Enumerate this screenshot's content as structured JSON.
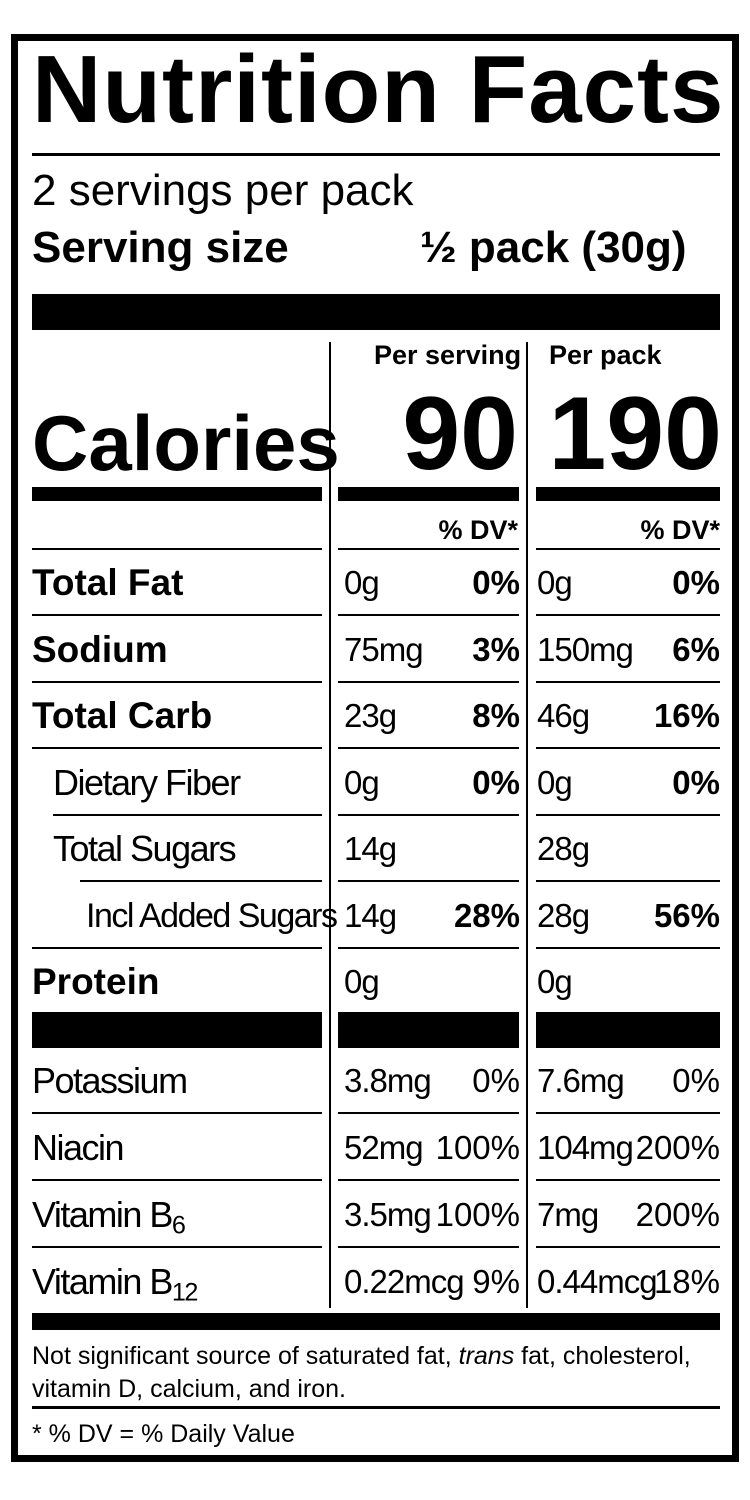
{
  "title": "Nutrition Facts",
  "servings_per_pack": "2 servings per pack",
  "serving_size_label": "Serving size",
  "serving_size_value": "½ pack (30g)",
  "columns": {
    "per_serving": "Per serving",
    "per_pack": "Per pack"
  },
  "calories": {
    "label": "Calories",
    "per_serving": "90",
    "per_pack": "190"
  },
  "dv_header": "% DV*",
  "nutrients": [
    {
      "name": "Total Fat",
      "serving_amount": "0g",
      "serving_dv": "0%",
      "pack_amount": "0g",
      "pack_dv": "0%"
    },
    {
      "name": "Sodium",
      "serving_amount": "75mg",
      "serving_dv": "3%",
      "pack_amount": "150mg",
      "pack_dv": "6%"
    },
    {
      "name": "Total Carb",
      "serving_amount": "23g",
      "serving_dv": "8%",
      "pack_amount": "46g",
      "pack_dv": "16%"
    },
    {
      "name": "Dietary Fiber",
      "serving_amount": "0g",
      "serving_dv": "0%",
      "pack_amount": "0g",
      "pack_dv": "0%"
    },
    {
      "name": "Total Sugars",
      "serving_amount": "14g",
      "serving_dv": "",
      "pack_amount": "28g",
      "pack_dv": ""
    },
    {
      "name": "Incl Added Sugars",
      "serving_amount": "14g",
      "serving_dv": "28%",
      "pack_amount": "28g",
      "pack_dv": "56%"
    },
    {
      "name": "Protein",
      "serving_amount": "0g",
      "serving_dv": "",
      "pack_amount": "0g",
      "pack_dv": ""
    }
  ],
  "vitamins": [
    {
      "name": "Potassium",
      "serving_amount": "3.8mg",
      "serving_dv": "0%",
      "pack_amount": "7.6mg",
      "pack_dv": "0%"
    },
    {
      "name": "Niacin",
      "serving_amount": "52mg",
      "serving_dv": "100%",
      "pack_amount": "104mg",
      "pack_dv": "200%"
    },
    {
      "name": "Vitamin B",
      "subscript": "6",
      "serving_amount": "3.5mg",
      "serving_dv": "100%",
      "pack_amount": "7mg",
      "pack_dv": "200%"
    },
    {
      "name": "Vitamin B",
      "subscript": "12",
      "serving_amount": "0.22mcg",
      "serving_dv": "9%",
      "pack_amount": "0.44mcg",
      "pack_dv": "18%"
    }
  ],
  "footnote": {
    "part1": "Not significant source of saturated fat, ",
    "italic": "trans",
    "part2": " fat, cholesterol, vitamin D, calcium, and iron."
  },
  "dv_note": "* % DV = % Daily Value"
}
